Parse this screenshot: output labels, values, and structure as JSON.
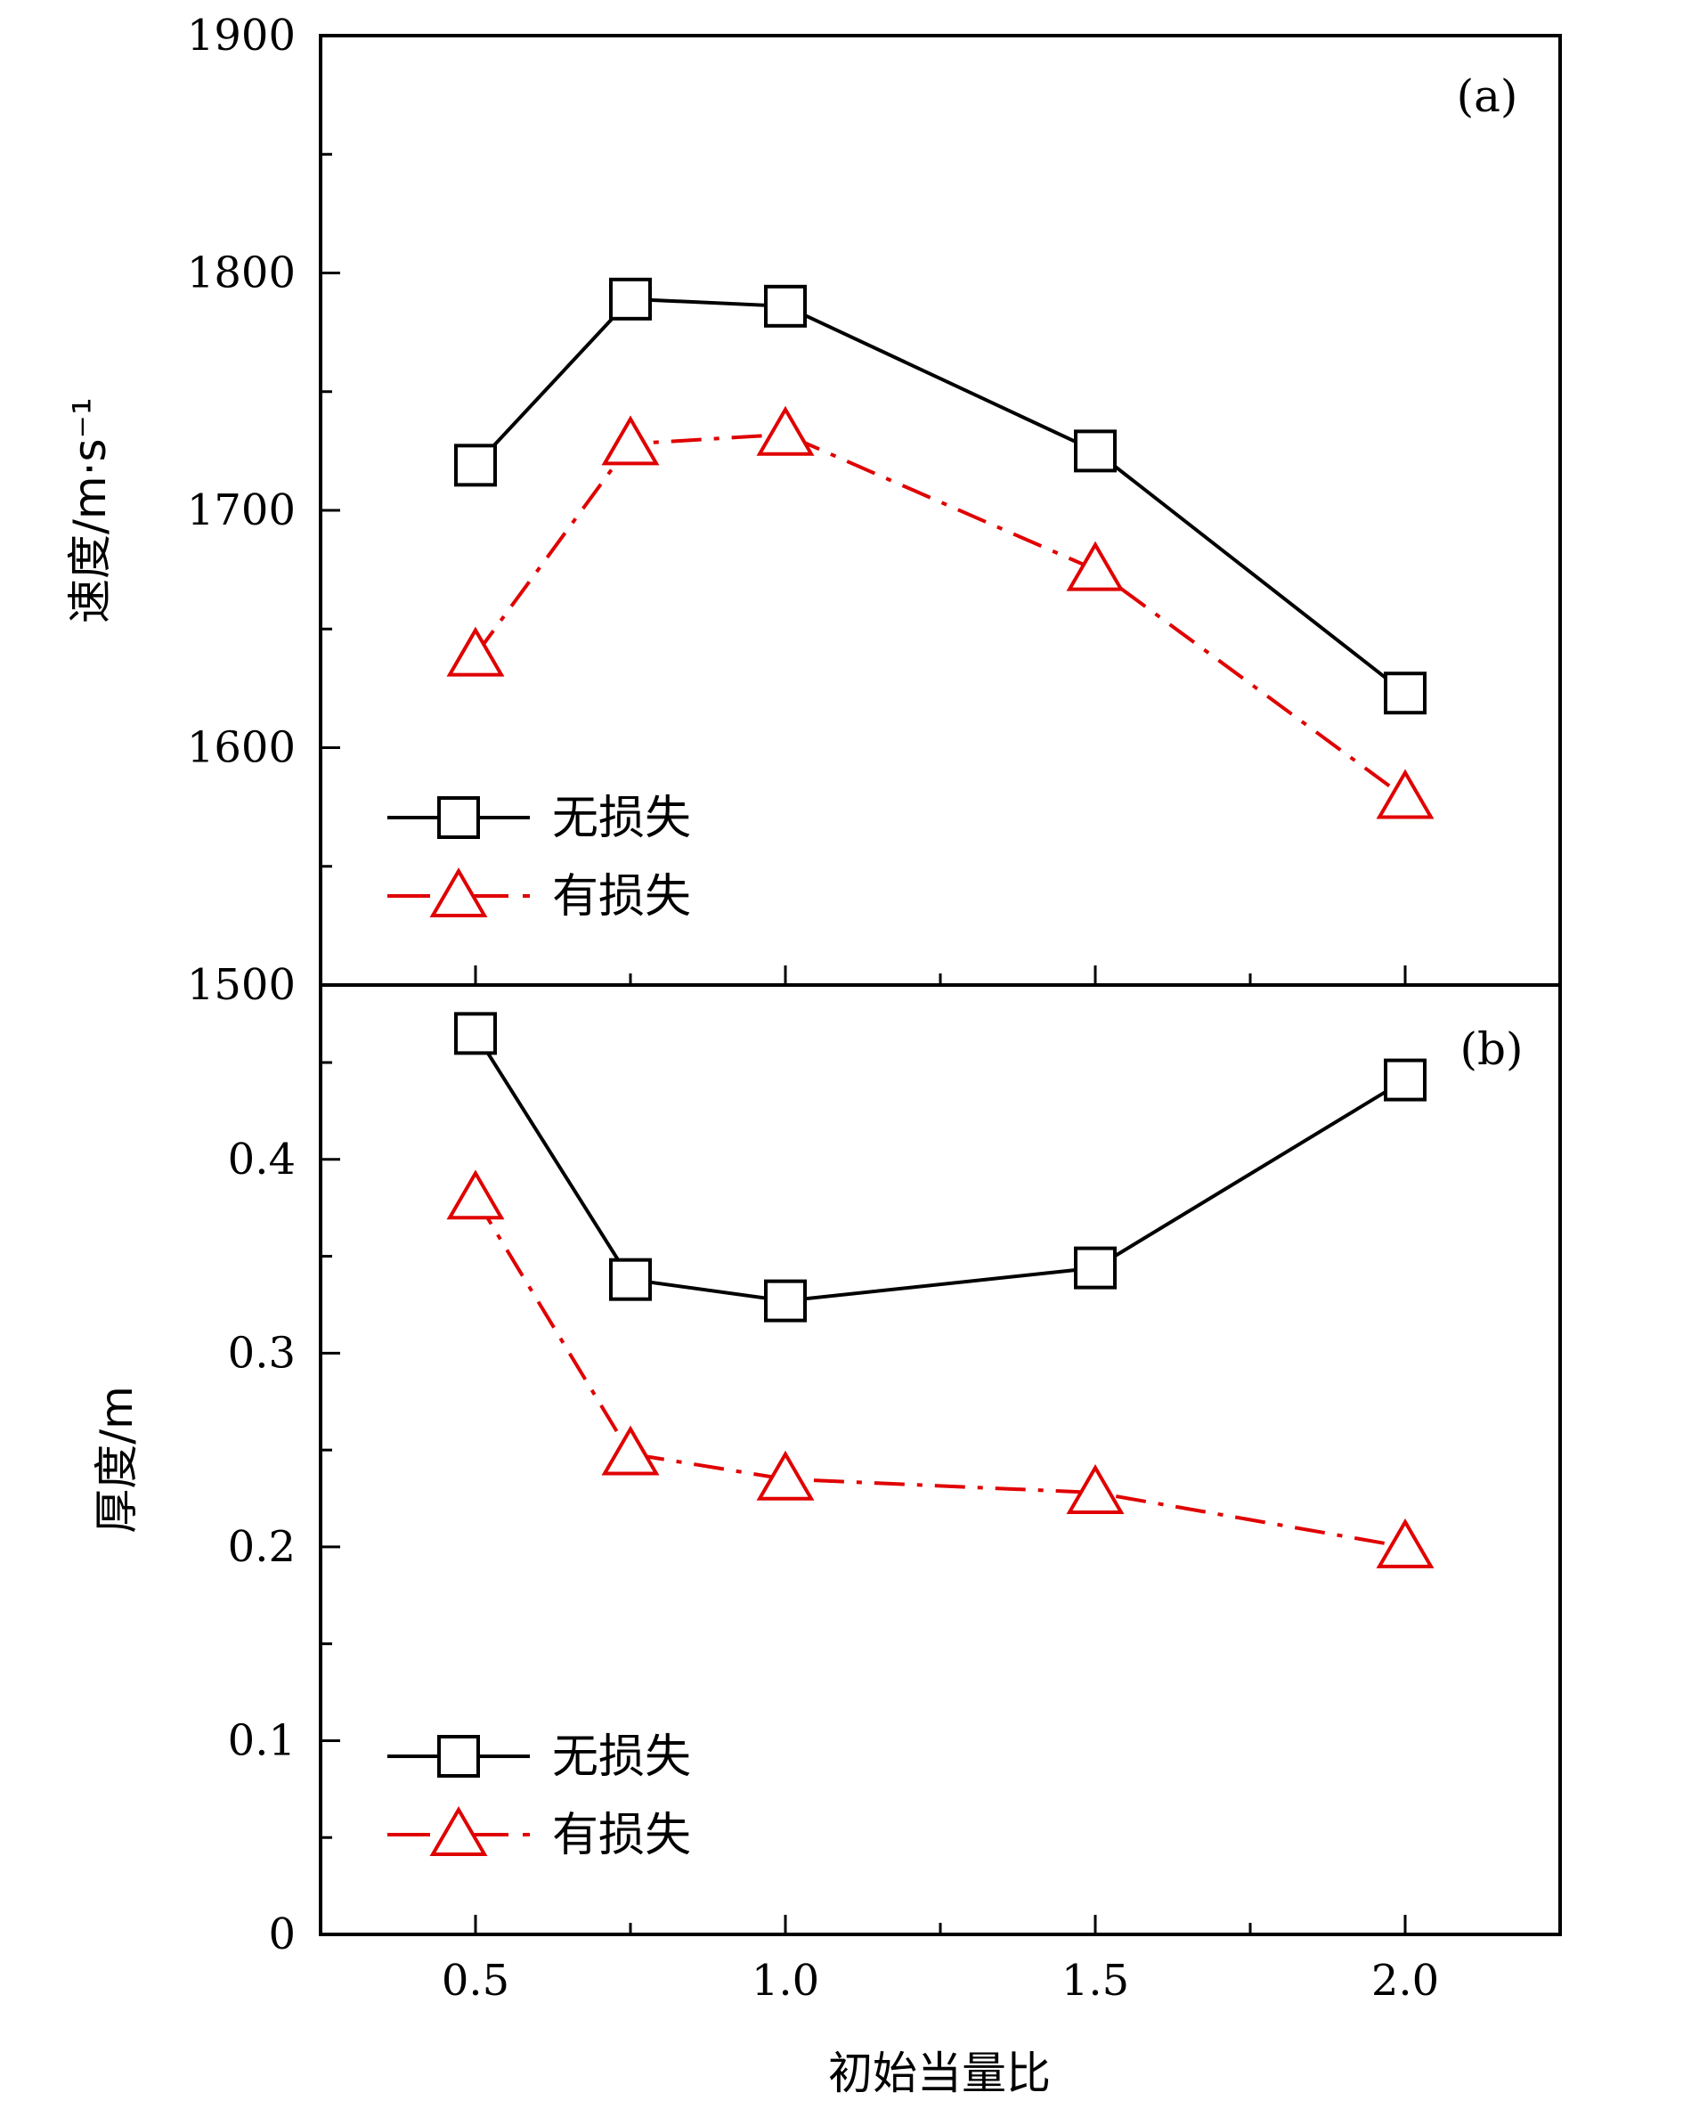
{
  "chart_data": [
    {
      "type": "line",
      "panel_label": "(a)",
      "ylabel": "速度/m·s⁻¹",
      "ylim": [
        1500,
        1900
      ],
      "yticks": [
        "1500",
        "1600",
        "1700",
        "1800",
        "1900"
      ],
      "xlim": [
        0.25,
        2.25
      ],
      "x": [
        0.5,
        0.75,
        1.0,
        1.5,
        2.0
      ],
      "series": [
        {
          "name": "无损失",
          "marker": "square",
          "color": "#000000",
          "dash": "solid",
          "values": [
            1719,
            1789,
            1786,
            1725,
            1623
          ]
        },
        {
          "name": "有损失",
          "marker": "triangle",
          "color": "#e00000",
          "dash": "dashdot",
          "values": [
            1639,
            1728,
            1732,
            1675,
            1579
          ]
        }
      ],
      "legend": "bottom-left",
      "grid": false
    },
    {
      "type": "line",
      "panel_label": "(b)",
      "ylabel": "厚度/m",
      "ylim": [
        0,
        0.49
      ],
      "yticks": [
        "0",
        "0.1",
        "0.2",
        "0.3",
        "0.4"
      ],
      "xlim": [
        0.25,
        2.25
      ],
      "x": [
        0.5,
        0.75,
        1.0,
        1.5,
        2.0
      ],
      "xticks": [
        "0.5",
        "1.0",
        "1.5",
        "2.0"
      ],
      "xlabel": "初始当量比",
      "series": [
        {
          "name": "无损失",
          "marker": "square",
          "color": "#000000",
          "dash": "solid",
          "values": [
            0.465,
            0.338,
            0.327,
            0.344,
            0.441
          ]
        },
        {
          "name": "有损失",
          "marker": "triangle",
          "color": "#e00000",
          "dash": "dashdot",
          "values": [
            0.38,
            0.248,
            0.235,
            0.228,
            0.2
          ]
        }
      ],
      "legend": "bottom-left",
      "grid": false
    }
  ]
}
